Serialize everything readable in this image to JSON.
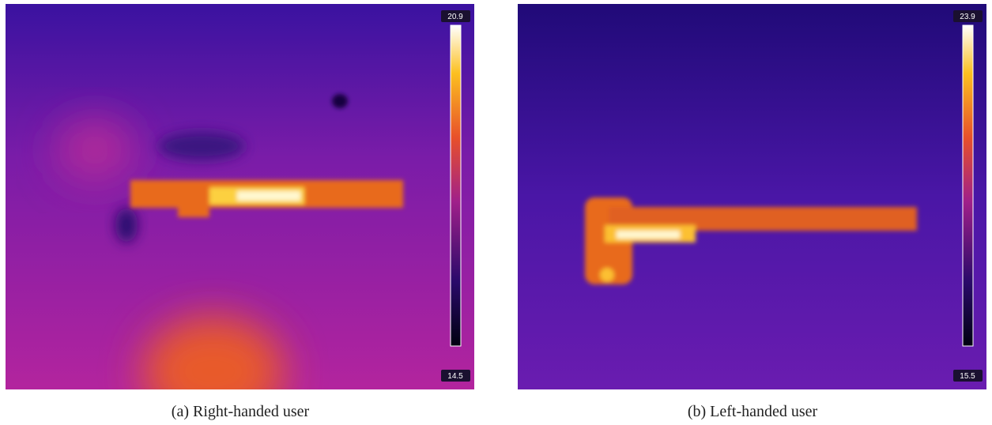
{
  "panels": [
    {
      "scale_max": "20.9",
      "scale_min": "14.5",
      "caption": "(a) Right-handed user"
    },
    {
      "scale_max": "23.9",
      "scale_min": "15.5",
      "caption": "(b) Left-handed user"
    }
  ]
}
